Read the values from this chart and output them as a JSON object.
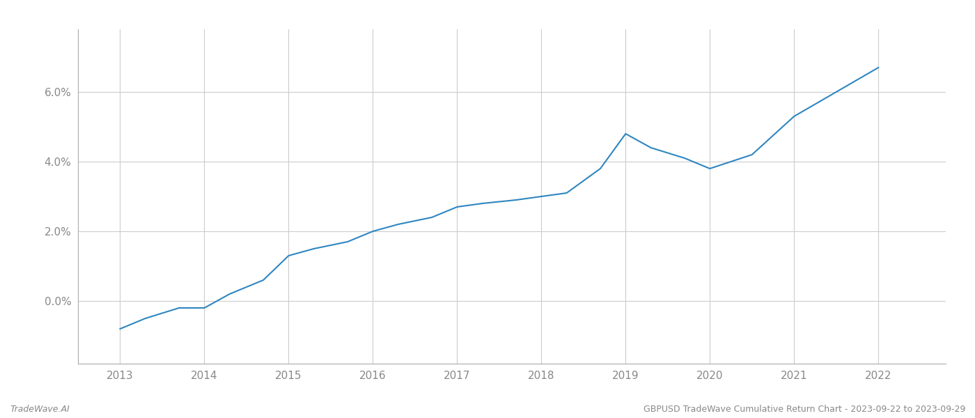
{
  "x_years": [
    2013,
    2013.3,
    2013.7,
    2014,
    2014.3,
    2014.7,
    2015,
    2015.3,
    2015.7,
    2016,
    2016.3,
    2016.7,
    2017,
    2017.3,
    2017.7,
    2018,
    2018.3,
    2018.7,
    2019,
    2019.3,
    2019.7,
    2020,
    2020.5,
    2021,
    2021.5,
    2022
  ],
  "y_values": [
    -0.008,
    -0.005,
    -0.002,
    -0.002,
    0.002,
    0.006,
    0.013,
    0.015,
    0.017,
    0.02,
    0.022,
    0.024,
    0.027,
    0.028,
    0.029,
    0.03,
    0.031,
    0.038,
    0.048,
    0.044,
    0.041,
    0.038,
    0.042,
    0.053,
    0.06,
    0.067
  ],
  "line_color": "#2e86c1",
  "line_width": 1.5,
  "background_color": "#ffffff",
  "grid_color": "#cccccc",
  "x_ticks": [
    2013,
    2014,
    2015,
    2016,
    2017,
    2018,
    2019,
    2020,
    2021,
    2022
  ],
  "y_ticks": [
    0.0,
    0.02,
    0.04,
    0.06
  ],
  "y_tick_labels": [
    "0.0%",
    "2.0%",
    "4.0%",
    "6.0%"
  ],
  "xlim": [
    2012.5,
    2022.8
  ],
  "ylim": [
    -0.018,
    0.078
  ],
  "footer_left": "TradeWave.AI",
  "footer_right": "GBPUSD TradeWave Cumulative Return Chart - 2023-09-22 to 2023-09-29",
  "footer_fontsize": 9,
  "tick_fontsize": 11,
  "spine_color": "#aaaaaa"
}
